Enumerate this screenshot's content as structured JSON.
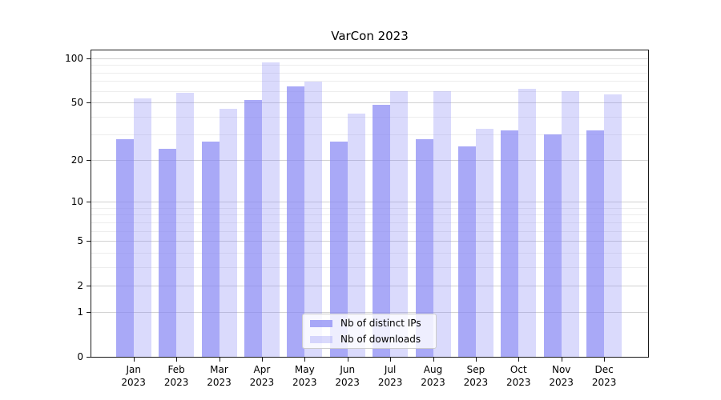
{
  "chart_data": {
    "type": "bar",
    "title": "VarCon 2023",
    "x_categories": [
      {
        "month": "Jan",
        "year": "2023"
      },
      {
        "month": "Feb",
        "year": "2023"
      },
      {
        "month": "Mar",
        "year": "2023"
      },
      {
        "month": "Apr",
        "year": "2023"
      },
      {
        "month": "May",
        "year": "2023"
      },
      {
        "month": "Jun",
        "year": "2023"
      },
      {
        "month": "Jul",
        "year": "2023"
      },
      {
        "month": "Aug",
        "year": "2023"
      },
      {
        "month": "Sep",
        "year": "2023"
      },
      {
        "month": "Oct",
        "year": "2023"
      },
      {
        "month": "Nov",
        "year": "2023"
      },
      {
        "month": "Dec",
        "year": "2023"
      }
    ],
    "series": [
      {
        "name": "Nb of distinct IPs",
        "color": "rgba(132,132,244,0.7)",
        "values": [
          28,
          24,
          27,
          52,
          64,
          27,
          48,
          28,
          25,
          32,
          30,
          32
        ]
      },
      {
        "name": "Nb of downloads",
        "color": "rgba(132,132,244,0.3)",
        "values": [
          53,
          58,
          45,
          94,
          69,
          42,
          60,
          60,
          33,
          62,
          60,
          57
        ]
      }
    ],
    "y_axis": {
      "scale": "log1p",
      "major_ticks": [
        0,
        1,
        2,
        5,
        10,
        20,
        50,
        100
      ],
      "minor_gridlines": [
        3,
        4,
        6,
        7,
        8,
        9,
        30,
        40,
        60,
        70,
        80,
        90
      ],
      "range": [
        0,
        115
      ]
    },
    "legend_position": "lower center",
    "grid": {
      "major_color": "#d2d2d2",
      "minor_color": "#ededed"
    },
    "frame_color": "#1a1a1a"
  }
}
